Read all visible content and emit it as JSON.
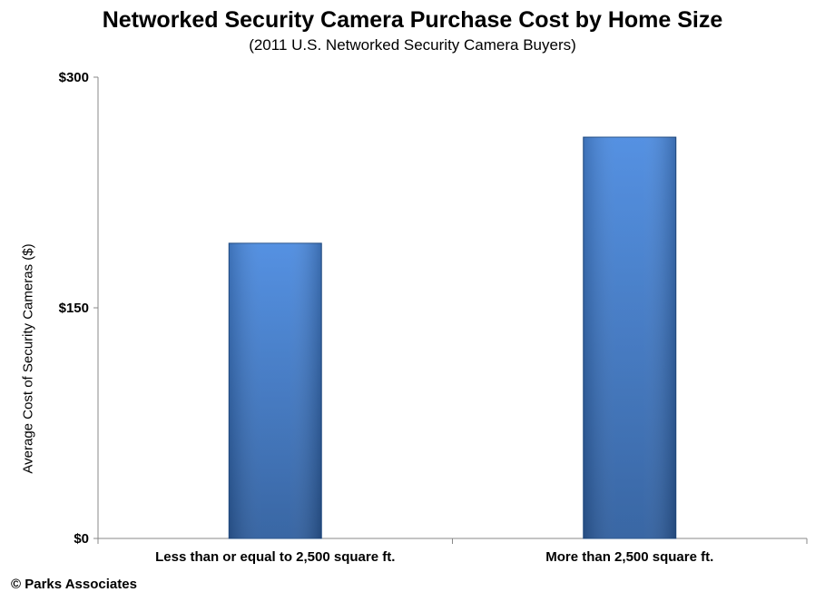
{
  "chart_data": {
    "type": "bar",
    "title": "Networked Security Camera Purchase Cost by Home Size",
    "subtitle": "(2011 U.S. Networked Security Camera Buyers)",
    "xlabel": "",
    "ylabel": "Average Cost of Security Cameras ($)",
    "categories": [
      "Less than or equal to 2,500 square ft.",
      "More than 2,500 square ft."
    ],
    "values": [
      192,
      261
    ],
    "ylim": [
      0,
      300
    ],
    "yticks": [
      0,
      150,
      300
    ],
    "ytick_labels": [
      "$0",
      "$150",
      "$300"
    ],
    "grid": false,
    "legend": "none",
    "colors": {
      "bar_light": "#4a8ae0",
      "bar_dark": "#2d5d9e",
      "bar_edge": "#23508a",
      "axis": "#888888"
    }
  },
  "footer": {
    "source": "© Parks Associates"
  }
}
